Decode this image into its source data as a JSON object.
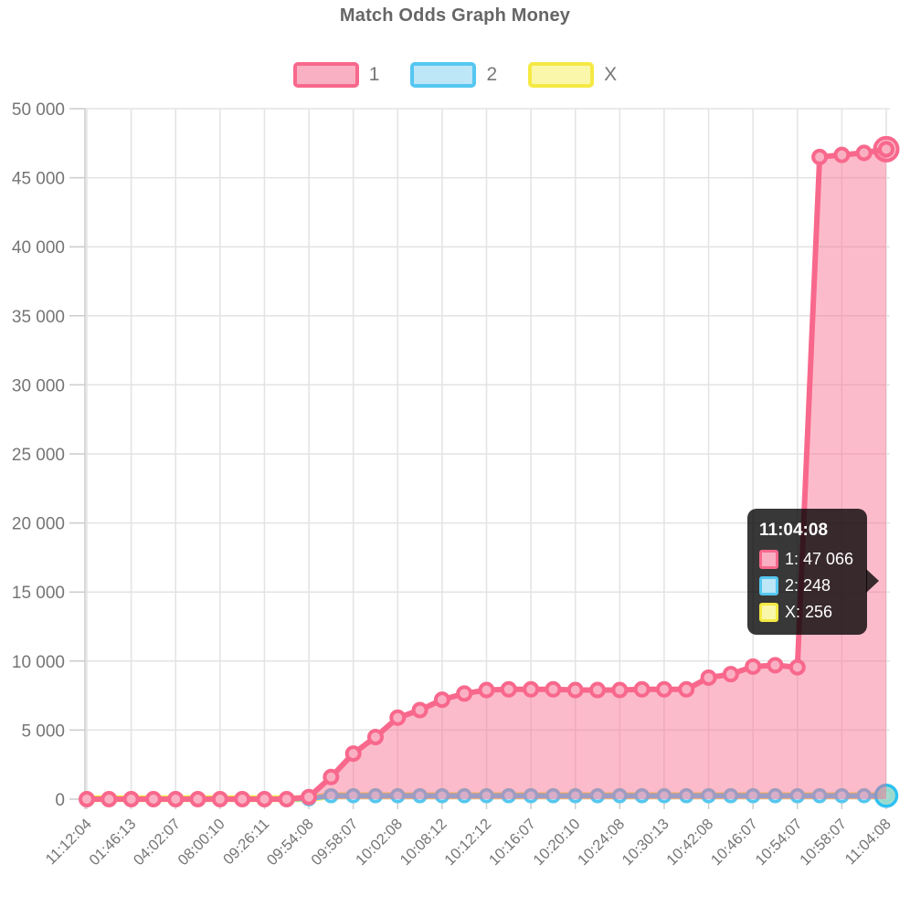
{
  "chart_data": {
    "type": "area",
    "title": "Match Odds Graph Money",
    "x_tick_labels": [
      "11:12:04",
      "01:46:13",
      "04:02:07",
      "08:00:10",
      "09:26:11",
      "09:54:08",
      "09:58:07",
      "10:02:08",
      "10:08:12",
      "10:12:12",
      "10:16:07",
      "10:20:10",
      "10:24:08",
      "10:30:13",
      "10:42:08",
      "10:46:07",
      "10:54:07",
      "10:58:07",
      "11:04:08"
    ],
    "points_per_tick": 2,
    "y_tick_labels": [
      "0",
      "5 000",
      "10 000",
      "15 000",
      "20 000",
      "25 000",
      "30 000",
      "35 000",
      "40 000",
      "45 000",
      "50 000"
    ],
    "ylim": [
      0,
      50000
    ],
    "y_step": 5000,
    "legend_position": "top",
    "grid": true,
    "series": [
      {
        "name": "1",
        "color": "#f8688c",
        "marker_fill": "#fab0c3",
        "area_fill": "rgba(248,104,140,0.45)",
        "line_width": 6,
        "values": [
          0,
          0,
          0,
          0,
          0,
          0,
          0,
          0,
          0,
          0,
          150,
          1600,
          3300,
          4500,
          5900,
          6450,
          7200,
          7650,
          7900,
          7950,
          7950,
          7950,
          7900,
          7900,
          7900,
          7950,
          7950,
          7950,
          8800,
          9050,
          9600,
          9700,
          9550,
          46500,
          46650,
          46800,
          47066
        ]
      },
      {
        "name": "2",
        "color": "#55c7f0",
        "marker_fill": "#bde6f7",
        "area_fill": "rgba(85,199,240,0.0)",
        "line_width": 5.5,
        "values": [
          20,
          20,
          20,
          20,
          20,
          20,
          20,
          20,
          20,
          20,
          20,
          248,
          248,
          248,
          248,
          248,
          248,
          248,
          248,
          248,
          248,
          248,
          248,
          248,
          248,
          248,
          248,
          248,
          248,
          248,
          248,
          248,
          248,
          248,
          248,
          248,
          248
        ]
      },
      {
        "name": "X",
        "color": "#f5e943",
        "marker_fill": "#faf7ab",
        "area_fill": "rgba(245,233,67,0.0)",
        "line_width": 7.5,
        "values": [
          30,
          30,
          30,
          30,
          30,
          30,
          30,
          30,
          30,
          30,
          30,
          256,
          256,
          256,
          256,
          256,
          256,
          256,
          256,
          256,
          256,
          256,
          256,
          256,
          256,
          256,
          256,
          256,
          256,
          256,
          256,
          256,
          256,
          256,
          256,
          256,
          256
        ]
      }
    ],
    "highlight_index": 36,
    "tooltip": {
      "time": "11:04:08",
      "rows": [
        {
          "series": "1",
          "value": "47 066",
          "text": "1: 47 066"
        },
        {
          "series": "2",
          "value": "248",
          "text": "2: 248"
        },
        {
          "series": "X",
          "value": "256",
          "text": "X: 256"
        }
      ]
    },
    "style": {
      "grid_color": "#e3e3e3",
      "axis_color": "#cccccc",
      "label_color": "#757575",
      "title_color": "#666666",
      "tooltip_bg": "rgba(0,0,0,0.78)"
    }
  }
}
